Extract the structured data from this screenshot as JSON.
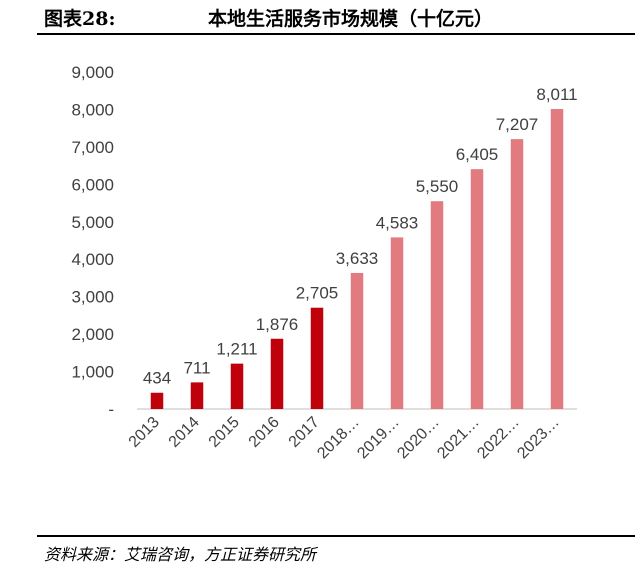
{
  "header": {
    "figure_label": "图表28:",
    "title": "本地生活服务市场规模（十亿元）"
  },
  "footer": {
    "source": "资料来源：艾瑞咨询，方正证券研究所"
  },
  "colors": {
    "actual": "#c0000b",
    "forecast": "#e27b80",
    "axis": "#bfbfbf",
    "text": "#404040"
  },
  "chart_data": {
    "type": "bar",
    "title": "本地生活服务市场规模（十亿元）",
    "xlabel": "",
    "ylabel": "",
    "ylim": [
      0,
      9000
    ],
    "yticks": [
      0,
      1000,
      2000,
      3000,
      4000,
      5000,
      6000,
      7000,
      8000,
      9000
    ],
    "ytick_labels": [
      "-",
      "1,000",
      "2,000",
      "3,000",
      "4,000",
      "5,000",
      "6,000",
      "7,000",
      "8,000",
      "9,000"
    ],
    "grid": false,
    "legend": "none",
    "categories": [
      "2013",
      "2014",
      "2015",
      "2016",
      "2017",
      "2018…",
      "2019…",
      "2020…",
      "2021…",
      "2022…",
      "2023…"
    ],
    "values": [
      434,
      711,
      1211,
      1876,
      2705,
      3633,
      4583,
      5550,
      6405,
      7207,
      8011
    ],
    "data_labels": [
      "434",
      "711",
      "1,211",
      "1,876",
      "2,705",
      "3,633",
      "4,583",
      "5,550",
      "6,405",
      "7,207",
      "8,011"
    ],
    "forecast": [
      false,
      false,
      false,
      false,
      false,
      true,
      true,
      true,
      true,
      true,
      true
    ]
  }
}
